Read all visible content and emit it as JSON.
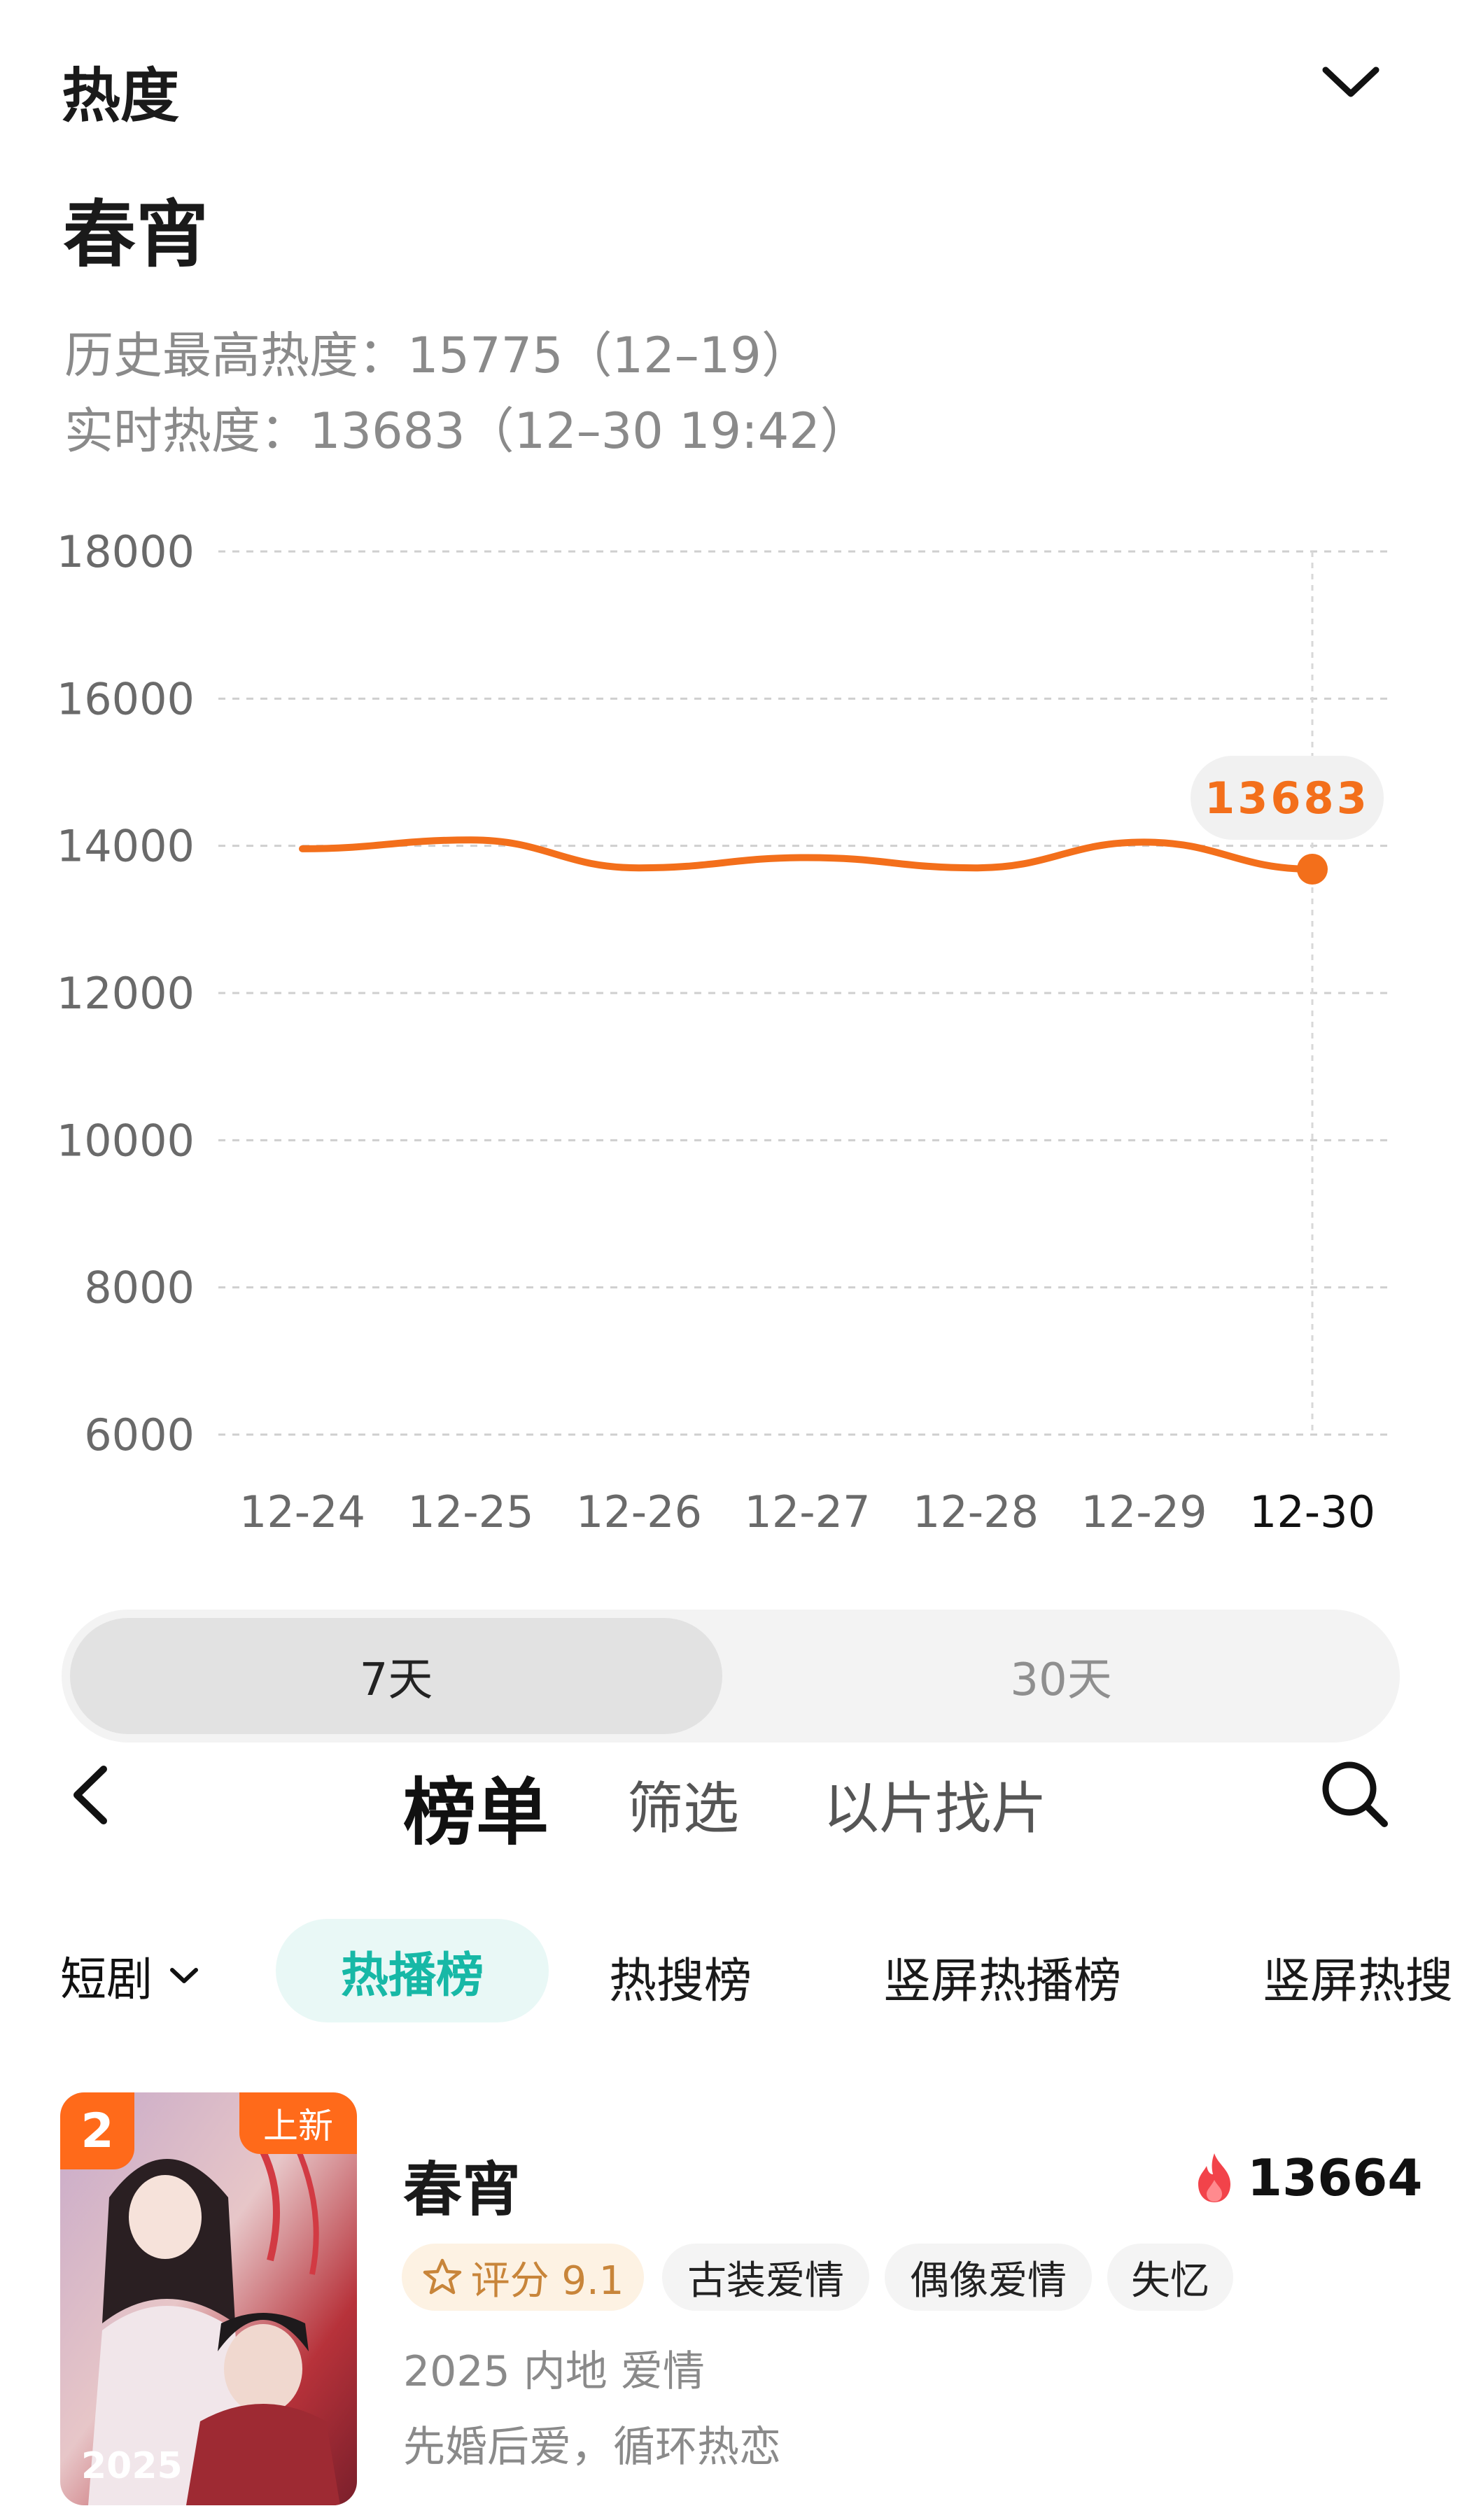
{
  "header": {
    "title": "热度",
    "collapse_icon": "chevron-down-icon"
  },
  "show": {
    "title": "春宵",
    "max_heat": "历史最高热度：15775（12–19）",
    "realtime_heat": "实时热度：13683（12–30 19:42）"
  },
  "chart_data": {
    "type": "line",
    "x": [
      "12-24",
      "12-25",
      "12-26",
      "12-27",
      "12-28",
      "12-29",
      "12-30"
    ],
    "series": [
      {
        "values": [
          13960,
          14080,
          13700,
          13840,
          13700,
          14050,
          13683
        ]
      }
    ],
    "ylim": [
      6000,
      18000
    ],
    "yticks": [
      "18000",
      "16000",
      "14000",
      "12000",
      "10000",
      "8000",
      "6000"
    ],
    "grid": true,
    "highlight": {
      "x": "12-30",
      "label": "13683"
    },
    "colors": {
      "line": "#f36f1b",
      "label_bg": "#f1f1f1",
      "grid": "#cfcfcf"
    }
  },
  "range_toggle": {
    "options": [
      "7天",
      "30天"
    ],
    "selected": "7天"
  },
  "nav": {
    "back_icon": "chevron-left-icon",
    "tabs": [
      "榜单",
      "筛选",
      "以片找片"
    ],
    "active_tab": "榜单",
    "search_icon": "search-icon"
  },
  "categories": {
    "dropdown": "短剧",
    "items": [
      "热播榜",
      "热搜榜",
      "竖屏热播榜",
      "竖屏热搜"
    ],
    "active": "热播榜",
    "active_color": "#17b8a6"
  },
  "list_item": {
    "rank": "2",
    "badge": "上新",
    "poster_year": "2025",
    "title": "春宵",
    "heat": "13664",
    "score": "评分 9.1",
    "tags": [
      "古装爱情",
      "偶像爱情",
      "失忆"
    ],
    "meta": "2025 内地 爱情",
    "desc": "先婚后爱，循环热恋",
    "accent": "#ff6a1a"
  }
}
